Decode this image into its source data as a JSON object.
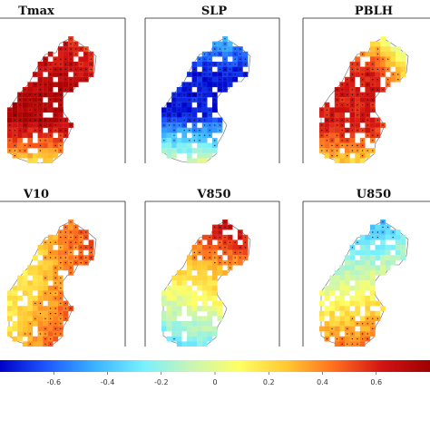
{
  "panels": [
    {
      "title": "Tmax",
      "pattern": "tmax"
    },
    {
      "title": "SLP",
      "pattern": "slp"
    },
    {
      "title": "PBLH",
      "pattern": "pblh"
    },
    {
      "title": "V10",
      "pattern": "v10"
    },
    {
      "title": "V850",
      "pattern": "v850"
    },
    {
      "title": "U850",
      "pattern": "u850"
    }
  ],
  "colorbar": {
    "min": -0.8,
    "max": 0.8,
    "ticks": [
      "-0.6",
      "-0.4",
      "-0.2",
      "0",
      "0.2",
      "0.4",
      "0.6"
    ],
    "tick_values": [
      -0.6,
      -0.4,
      -0.2,
      0,
      0.2,
      0.4,
      0.6
    ],
    "colors": [
      "#0000c8",
      "#1e5aff",
      "#3cb4ff",
      "#78f0ff",
      "#c8f5b4",
      "#ffff64",
      "#ffc832",
      "#ff6e1e",
      "#d21414",
      "#a00000"
    ]
  },
  "colors": {
    "land": "#ffffff",
    "coast": "#666666",
    "stipple": "#000000"
  }
}
